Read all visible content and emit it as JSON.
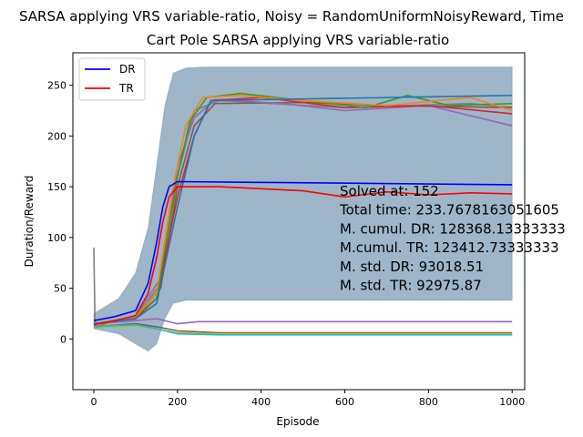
{
  "chart_data": {
    "type": "line",
    "suptitle": "SARSA applying VRS variable-ratio, Noisy = RandomUniformNoisyReward, Time",
    "title": "Cart Pole SARSA applying VRS variable-ratio",
    "xlabel": "Episode",
    "ylabel": "Duration/Reward",
    "xlim": [
      -50,
      1030
    ],
    "ylim": [
      -50,
      282
    ],
    "xticks": [
      0,
      200,
      400,
      600,
      800,
      1000
    ],
    "yticks": [
      0,
      50,
      100,
      150,
      200,
      250
    ],
    "grid": false,
    "legend_position": "top-left",
    "legend": [
      {
        "label": "DR",
        "color": "#0000ff"
      },
      {
        "label": "TR",
        "color": "#ff0000"
      }
    ],
    "annotations": [
      "Solved at: 152",
      "Total time: 233.7678163051605",
      "M. cumul. DR: 128368.13333333",
      "M.cumul. TR: 123412.73333333",
      "M. std. DR: 93018.51",
      "M. std. TR: 92975.87"
    ],
    "band": {
      "color": "#4f7a9a",
      "x": [
        0,
        60,
        100,
        130,
        150,
        170,
        190,
        220,
        260,
        300,
        400,
        500,
        600,
        700,
        800,
        900,
        1000
      ],
      "upper": [
        25,
        40,
        65,
        110,
        170,
        230,
        262,
        267,
        268,
        268,
        268,
        268,
        268,
        268,
        268,
        268,
        268
      ],
      "lower": [
        10,
        5,
        -5,
        -12,
        -5,
        20,
        35,
        38,
        38,
        38,
        38,
        38,
        38,
        38,
        38,
        38,
        38
      ]
    },
    "series": [
      {
        "color": "#0000ff",
        "x": [
          0,
          50,
          100,
          130,
          150,
          165,
          180,
          200,
          1000
        ],
        "y": [
          18,
          22,
          28,
          55,
          95,
          130,
          150,
          155,
          152
        ]
      },
      {
        "color": "#ff0000",
        "x": [
          0,
          50,
          100,
          130,
          150,
          165,
          180,
          200,
          300,
          400,
          500,
          600,
          700,
          800,
          900,
          1000
        ],
        "y": [
          14,
          18,
          23,
          45,
          80,
          115,
          140,
          150,
          150,
          148,
          146,
          140,
          145,
          142,
          144,
          143
        ]
      },
      {
        "color": "#1f77b4",
        "x": [
          0,
          100,
          150,
          200,
          240,
          280,
          1000
        ],
        "y": [
          15,
          20,
          35,
          130,
          200,
          235,
          240
        ]
      },
      {
        "color": "#ff7f0e",
        "x": [
          0,
          100,
          150,
          190,
          220,
          260,
          350,
          500,
          700,
          900,
          1000
        ],
        "y": [
          15,
          22,
          45,
          150,
          210,
          238,
          240,
          235,
          230,
          238,
          225
        ]
      },
      {
        "color": "#2ca02c",
        "x": [
          0,
          100,
          150,
          200,
          230,
          270,
          350,
          500,
          650,
          750,
          850,
          1000
        ],
        "y": [
          15,
          22,
          40,
          160,
          215,
          238,
          242,
          235,
          228,
          240,
          230,
          232
        ]
      },
      {
        "color": "#d62728",
        "x": [
          0,
          100,
          150,
          200,
          240,
          280,
          400,
          600,
          800,
          1000
        ],
        "y": [
          15,
          20,
          40,
          140,
          200,
          235,
          238,
          228,
          230,
          222
        ]
      },
      {
        "color": "#9467bd",
        "x": [
          0,
          100,
          160,
          200,
          240,
          290,
          450,
          600,
          800,
          1000
        ],
        "y": [
          15,
          20,
          55,
          170,
          218,
          236,
          232,
          225,
          230,
          210
        ]
      },
      {
        "color": "#8c564b",
        "x": [
          0,
          100,
          160,
          200,
          240,
          290,
          500,
          700,
          1000
        ],
        "y": [
          15,
          21,
          50,
          150,
          210,
          232,
          233,
          230,
          228
        ]
      },
      {
        "color": "#7f7f7f",
        "x": [
          0,
          3,
          6,
          50,
          100,
          160,
          200,
          240,
          300,
          600,
          900,
          1000
        ],
        "y": [
          90,
          15,
          12,
          18,
          22,
          60,
          160,
          225,
          235,
          228,
          232,
          228
        ]
      },
      {
        "color": "#9467bd",
        "x": [
          0,
          100,
          150,
          200,
          250,
          300,
          1000
        ],
        "y": [
          15,
          18,
          20,
          15,
          17,
          17,
          17
        ]
      },
      {
        "color": "#17becf",
        "x": [
          0,
          100,
          150,
          200,
          300,
          1000
        ],
        "y": [
          12,
          14,
          10,
          5,
          4,
          4
        ]
      },
      {
        "color": "#bcbd22",
        "x": [
          0,
          100,
          150,
          200,
          300,
          1000
        ],
        "y": [
          11,
          13,
          10,
          6,
          5,
          5
        ]
      },
      {
        "color": "#8c564b",
        "x": [
          0,
          100,
          150,
          200,
          300,
          1000
        ],
        "y": [
          12,
          15,
          12,
          8,
          6,
          6
        ]
      }
    ]
  }
}
